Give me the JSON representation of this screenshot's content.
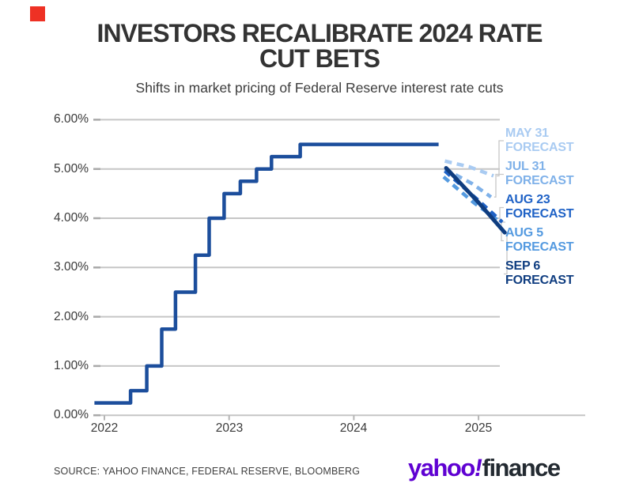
{
  "brand": {
    "accent_square_color": "#ee3124"
  },
  "header": {
    "title_line1": "INVESTORS RECALIBRATE 2024 RATE",
    "title_line2": "CUT BETS",
    "subtitle": "Shifts in market pricing of Federal Reserve interest rate cuts"
  },
  "chart_data": {
    "type": "line",
    "title": "INVESTORS RECALIBRATE 2024 RATE CUT BETS",
    "subtitle": "Shifts in market pricing of Federal Reserve interest rate cuts",
    "ylim": [
      0,
      6
    ],
    "xlim": [
      2021.9,
      2025.86
    ],
    "grid": "horizontal",
    "y_ticks": [
      "6.00%",
      "5.00%",
      "4.00%",
      "3.00%",
      "2.00%",
      "1.00%",
      "0.00%"
    ],
    "y_tick_values": [
      6,
      5,
      4,
      3,
      2,
      1,
      0
    ],
    "x_ticks": [
      "2022",
      "2023",
      "2024",
      "2025"
    ],
    "x_tick_values": [
      2022,
      2023,
      2024,
      2025
    ],
    "policy_rate": {
      "color": "#1c4e9c",
      "style": "step-solid",
      "points": [
        [
          2021.92,
          0.25
        ],
        [
          2022.21,
          0.25
        ],
        [
          2022.21,
          0.5
        ],
        [
          2022.34,
          0.5
        ],
        [
          2022.34,
          1.0
        ],
        [
          2022.46,
          1.0
        ],
        [
          2022.46,
          1.75
        ],
        [
          2022.57,
          1.75
        ],
        [
          2022.57,
          2.5
        ],
        [
          2022.73,
          2.5
        ],
        [
          2022.73,
          3.25
        ],
        [
          2022.84,
          3.25
        ],
        [
          2022.84,
          4.0
        ],
        [
          2022.96,
          4.0
        ],
        [
          2022.96,
          4.5
        ],
        [
          2023.09,
          4.5
        ],
        [
          2023.09,
          4.75
        ],
        [
          2023.22,
          4.75
        ],
        [
          2023.22,
          5.0
        ],
        [
          2023.34,
          5.0
        ],
        [
          2023.34,
          5.25
        ],
        [
          2023.57,
          5.25
        ],
        [
          2023.57,
          5.5
        ],
        [
          2024.68,
          5.5
        ]
      ]
    },
    "forecasts": [
      {
        "label_line1": "MAY 31",
        "label_line2": "FORECAST",
        "color": "#a9cbf2",
        "style": "dashed",
        "points": [
          [
            2024.73,
            5.16
          ],
          [
            2024.93,
            5.04
          ],
          [
            2025.12,
            4.86
          ]
        ]
      },
      {
        "label_line1": "JUL 31",
        "label_line2": "FORECAST",
        "color": "#7fb1e9",
        "style": "dashed",
        "points": [
          [
            2024.73,
            5.0
          ],
          [
            2024.95,
            4.7
          ],
          [
            2025.1,
            4.43
          ]
        ]
      },
      {
        "label_line1": "AUG 23",
        "label_line2": "FORECAST",
        "color": "#1f62c6",
        "style": "dashed",
        "points": [
          [
            2024.73,
            4.96
          ],
          [
            2025.0,
            4.36
          ],
          [
            2025.19,
            3.92
          ]
        ]
      },
      {
        "label_line1": "AUG 5",
        "label_line2": "FORECAST",
        "color": "#549ae0",
        "style": "dashed",
        "points": [
          [
            2024.72,
            4.84
          ],
          [
            2024.96,
            4.32
          ],
          [
            2025.15,
            3.97
          ]
        ]
      },
      {
        "label_line1": "SEP 6",
        "label_line2": "FORECAST",
        "color": "#0f3d80",
        "style": "solid-bold",
        "points": [
          [
            2024.74,
            5.02
          ],
          [
            2025.0,
            4.32
          ],
          [
            2025.21,
            3.71
          ]
        ]
      }
    ]
  },
  "footer": {
    "source": "SOURCE: YAHOO FINANCE, FEDERAL RESERVE, BLOOMBERG",
    "logo": {
      "yahoo": "yahoo",
      "exclamation": "!",
      "finance": "finance",
      "purple": "#5f01d2",
      "dark": "#232a31"
    }
  }
}
